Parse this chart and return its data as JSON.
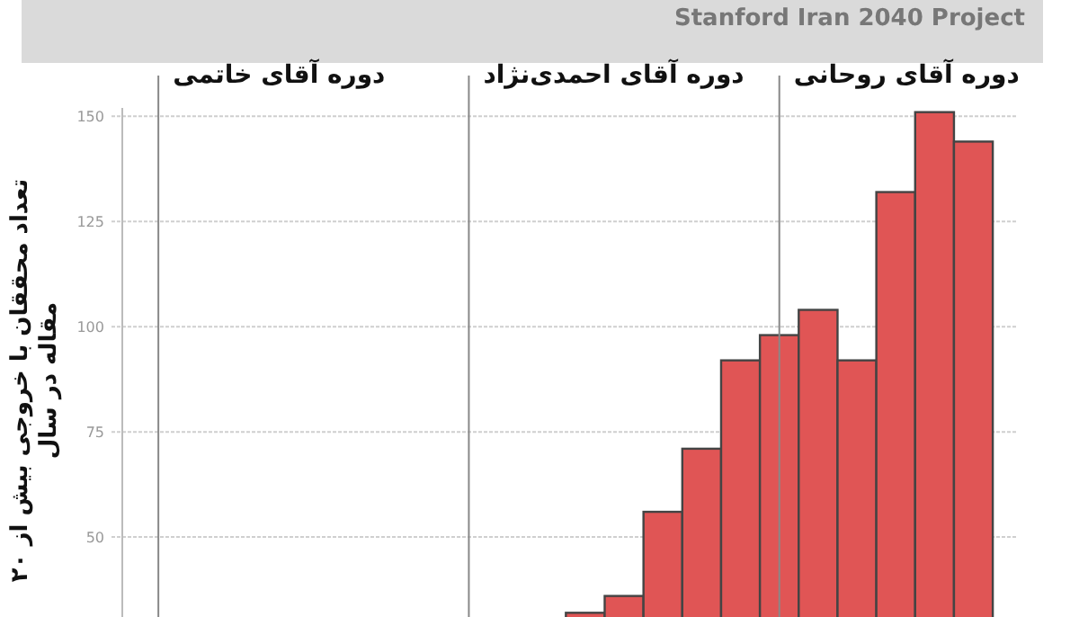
{
  "chart_data": {
    "type": "bar",
    "ylabel": "تعداد محققان با خروجی بیش از ۲۰\nمقاله در سال",
    "categories": [
      null,
      null,
      null,
      null,
      null,
      null,
      null,
      null,
      null,
      null,
      null,
      null,
      null,
      null,
      null,
      null,
      null,
      null,
      null,
      null,
      null,
      null
    ],
    "values": [
      null,
      null,
      null,
      null,
      null,
      null,
      null,
      null,
      null,
      null,
      null,
      32,
      36,
      56,
      71,
      92,
      98,
      104,
      92,
      132,
      151,
      144
    ],
    "color": "#e05555",
    "ylim": [
      31,
      152
    ],
    "yticks": [
      50,
      75,
      100,
      125,
      150
    ],
    "grid": "y",
    "annotations": [
      "Stanford Iran 2040 Project",
      "دوره آقای خاتمی",
      "دوره آقای احمدی‌نژاد",
      "دوره آقای روحانی"
    ]
  }
}
